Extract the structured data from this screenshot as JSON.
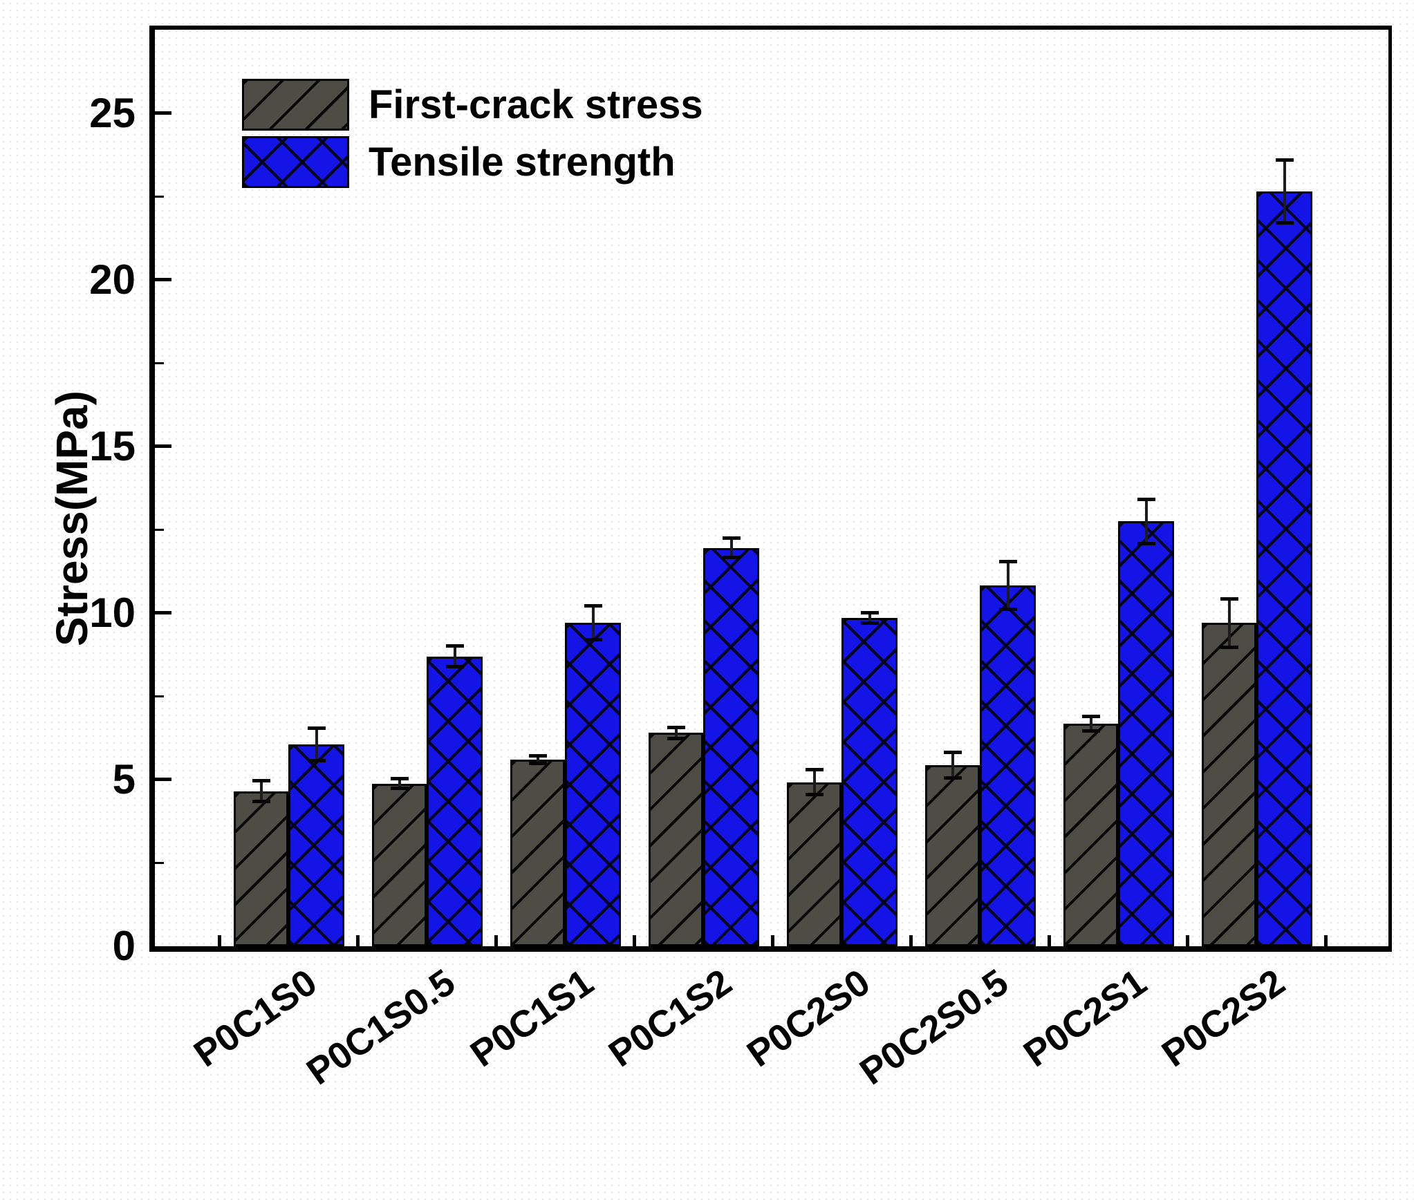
{
  "chart_data": {
    "type": "bar",
    "title": "",
    "ylabel": "Stress(MPa)",
    "categories": [
      "P0C1S0",
      "P0C1S0.5",
      "P0C1S1",
      "P0C1S2",
      "P0C2S0",
      "P0C2S0.5",
      "P0C2S1",
      "P0C2S2"
    ],
    "series": [
      {
        "name": "First-crack stress",
        "color": "#4d4d45",
        "hatch": "diagonal",
        "values": [
          4.65,
          4.88,
          5.6,
          6.4,
          4.92,
          5.43,
          6.68,
          9.7
        ],
        "errors": [
          0.32,
          0.15,
          0.12,
          0.18,
          0.38,
          0.4,
          0.23,
          0.74
        ]
      },
      {
        "name": "Tensile strength",
        "color": "#1414e6",
        "hatch": "crosshatch",
        "values": [
          6.05,
          8.7,
          9.7,
          11.95,
          9.85,
          10.83,
          12.75,
          22.65
        ],
        "errors": [
          0.5,
          0.33,
          0.52,
          0.3,
          0.16,
          0.72,
          0.67,
          0.95
        ]
      }
    ],
    "ylim": [
      0,
      27.5
    ],
    "yticks": {
      "values": [
        0,
        5,
        10,
        15,
        20,
        25
      ],
      "labels": [
        "0",
        "5",
        "10",
        "15",
        "20",
        "25"
      ],
      "minor_step": 2.5
    },
    "legend": {
      "position": "top-left",
      "entries": [
        "First-crack stress",
        "Tensile strength"
      ]
    },
    "grid": false,
    "error_bars": true,
    "axis_color": "#000000",
    "bar_border_color": "#000000"
  }
}
